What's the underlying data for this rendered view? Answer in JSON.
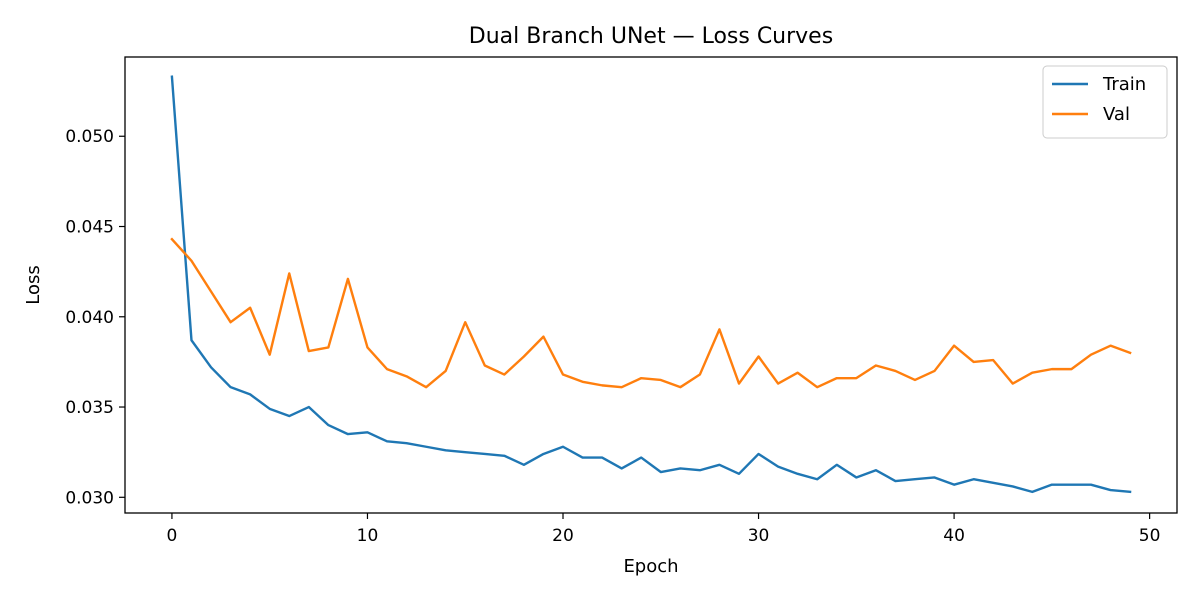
{
  "chart_data": {
    "type": "line",
    "title": "Dual Branch UNet — Loss Curves",
    "xlabel": "Epoch",
    "ylabel": "Loss",
    "xlim": [
      -2.4,
      51.4
    ],
    "ylim": [
      0.02913,
      0.05439
    ],
    "xticks": [
      0,
      10,
      20,
      30,
      40,
      50
    ],
    "xtick_labels": [
      "0",
      "10",
      "20",
      "30",
      "40",
      "50"
    ],
    "yticks": [
      0.03,
      0.035,
      0.04,
      0.045,
      0.05
    ],
    "ytick_labels": [
      "0.030",
      "0.035",
      "0.040",
      "0.045",
      "0.050"
    ],
    "grid": false,
    "legend": "top-right",
    "x": [
      0,
      1,
      2,
      3,
      4,
      5,
      6,
      7,
      8,
      9,
      10,
      11,
      12,
      13,
      14,
      15,
      16,
      17,
      18,
      19,
      20,
      21,
      22,
      23,
      24,
      25,
      26,
      27,
      28,
      29,
      30,
      31,
      32,
      33,
      34,
      35,
      36,
      37,
      38,
      39,
      40,
      41,
      42,
      43,
      44,
      45,
      46,
      47,
      48,
      49
    ],
    "series": [
      {
        "name": "Train",
        "color": "#1f77b4",
        "values": [
          0.0533,
          0.0387,
          0.0372,
          0.0361,
          0.0357,
          0.0349,
          0.0345,
          0.035,
          0.034,
          0.0335,
          0.0336,
          0.0331,
          0.033,
          0.0328,
          0.0326,
          0.0325,
          0.0324,
          0.0323,
          0.0318,
          0.0324,
          0.0328,
          0.0322,
          0.0322,
          0.0316,
          0.0322,
          0.0314,
          0.0316,
          0.0315,
          0.0318,
          0.0313,
          0.0324,
          0.0317,
          0.0313,
          0.031,
          0.0318,
          0.0311,
          0.0315,
          0.0309,
          0.031,
          0.0311,
          0.0307,
          0.031,
          0.0308,
          0.0306,
          0.0303,
          0.0307,
          0.0307,
          0.0307,
          0.0304,
          0.0303
        ]
      },
      {
        "name": "Val",
        "color": "#ff7f0e",
        "values": [
          0.0443,
          0.0431,
          0.0414,
          0.0397,
          0.0405,
          0.0379,
          0.0424,
          0.0381,
          0.0383,
          0.0421,
          0.0383,
          0.0371,
          0.0367,
          0.0361,
          0.037,
          0.0397,
          0.0373,
          0.0368,
          0.0378,
          0.0389,
          0.0368,
          0.0364,
          0.0362,
          0.0361,
          0.0366,
          0.0365,
          0.0361,
          0.0368,
          0.0393,
          0.0363,
          0.0378,
          0.0363,
          0.0369,
          0.0361,
          0.0366,
          0.0366,
          0.0373,
          0.037,
          0.0365,
          0.037,
          0.0384,
          0.0375,
          0.0376,
          0.0363,
          0.0369,
          0.0371,
          0.0371,
          0.0379,
          0.0384,
          0.038
        ]
      }
    ]
  }
}
